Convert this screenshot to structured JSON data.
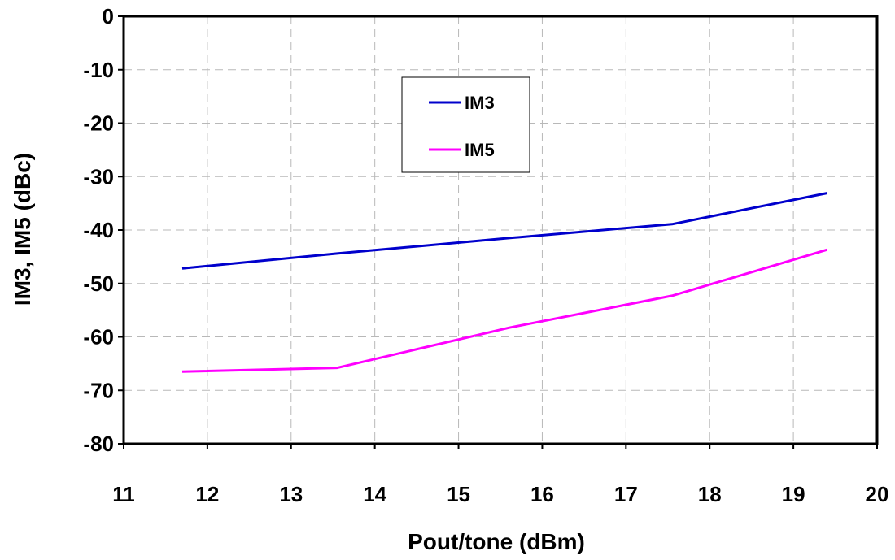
{
  "chart_data": {
    "type": "line",
    "xlabel": "Pout/tone (dBm)",
    "ylabel": "IM3, IM5 (dBc)",
    "xlim": [
      11,
      20
    ],
    "ylim": [
      -80,
      0
    ],
    "x_ticks": [
      11,
      12,
      13,
      14,
      15,
      16,
      17,
      18,
      19,
      20
    ],
    "y_ticks": [
      0,
      -10,
      -20,
      -30,
      -40,
      -50,
      -60,
      -70,
      -80
    ],
    "x_tick_labels": [
      "11",
      "12",
      "13",
      "14",
      "15",
      "16",
      "17",
      "18",
      "19",
      "20"
    ],
    "y_tick_labels": [
      "0",
      "-10",
      "-20",
      "-30",
      "-40",
      "-50",
      "-60",
      "-70",
      "-80"
    ],
    "grid": true,
    "legend_position": "upper-center",
    "series": [
      {
        "name": "IM3",
        "color": "#0000cc",
        "x": [
          11.7,
          13.55,
          15.6,
          17.55,
          19.4
        ],
        "y": [
          -47.2,
          -44.4,
          -41.5,
          -38.9,
          -33.1
        ]
      },
      {
        "name": "IM5",
        "color": "#ff00ff",
        "x": [
          11.7,
          13.55,
          15.6,
          17.55,
          19.4
        ],
        "y": [
          -66.5,
          -65.8,
          -58.3,
          -52.3,
          -43.7
        ]
      }
    ]
  }
}
